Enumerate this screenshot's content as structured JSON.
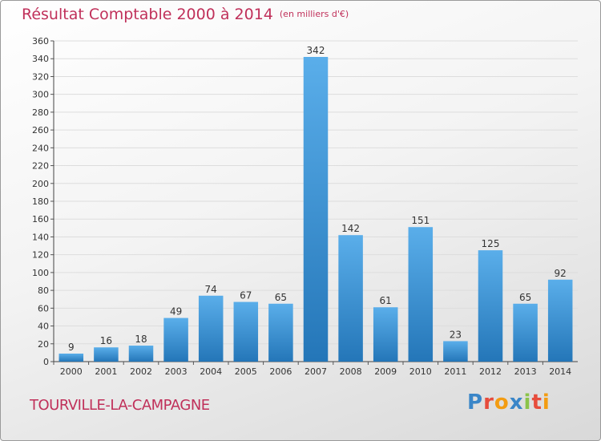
{
  "title": "Résultat Comptable 2000 à 2014",
  "unit_label": "(en milliers d'€)",
  "commune": "TOURVILLE-LA-CAMPAGNE",
  "logo": {
    "text": "Proxiti",
    "letters": [
      {
        "char": "P",
        "color": "#3a86c8"
      },
      {
        "char": "r",
        "color": "#e74c3c"
      },
      {
        "char": "o",
        "color": "#f39c12"
      },
      {
        "char": "x",
        "color": "#3a86c8"
      },
      {
        "char": "i",
        "color": "#8bc34a"
      },
      {
        "char": "t",
        "color": "#e74c3c"
      },
      {
        "char": "i",
        "color": "#f39c12"
      }
    ]
  },
  "colors": {
    "bar_top": "#5aaeea",
    "bar_bottom": "#2476b8",
    "title": "#c0305a",
    "grid": "#dddddd"
  },
  "chart_data": {
    "type": "bar",
    "title": "Résultat Comptable 2000 à 2014",
    "xlabel": "",
    "ylabel": "",
    "categories": [
      "2000",
      "2001",
      "2002",
      "2003",
      "2004",
      "2005",
      "2006",
      "2007",
      "2008",
      "2009",
      "2010",
      "2011",
      "2012",
      "2013",
      "2014"
    ],
    "values": [
      9,
      16,
      18,
      49,
      74,
      67,
      65,
      342,
      142,
      61,
      151,
      23,
      125,
      65,
      92
    ],
    "ylim": [
      0,
      360
    ],
    "yticks": [
      0,
      20,
      40,
      60,
      80,
      100,
      120,
      140,
      160,
      180,
      200,
      220,
      240,
      260,
      280,
      300,
      320,
      340,
      360
    ],
    "grid": true,
    "legend": "none"
  }
}
